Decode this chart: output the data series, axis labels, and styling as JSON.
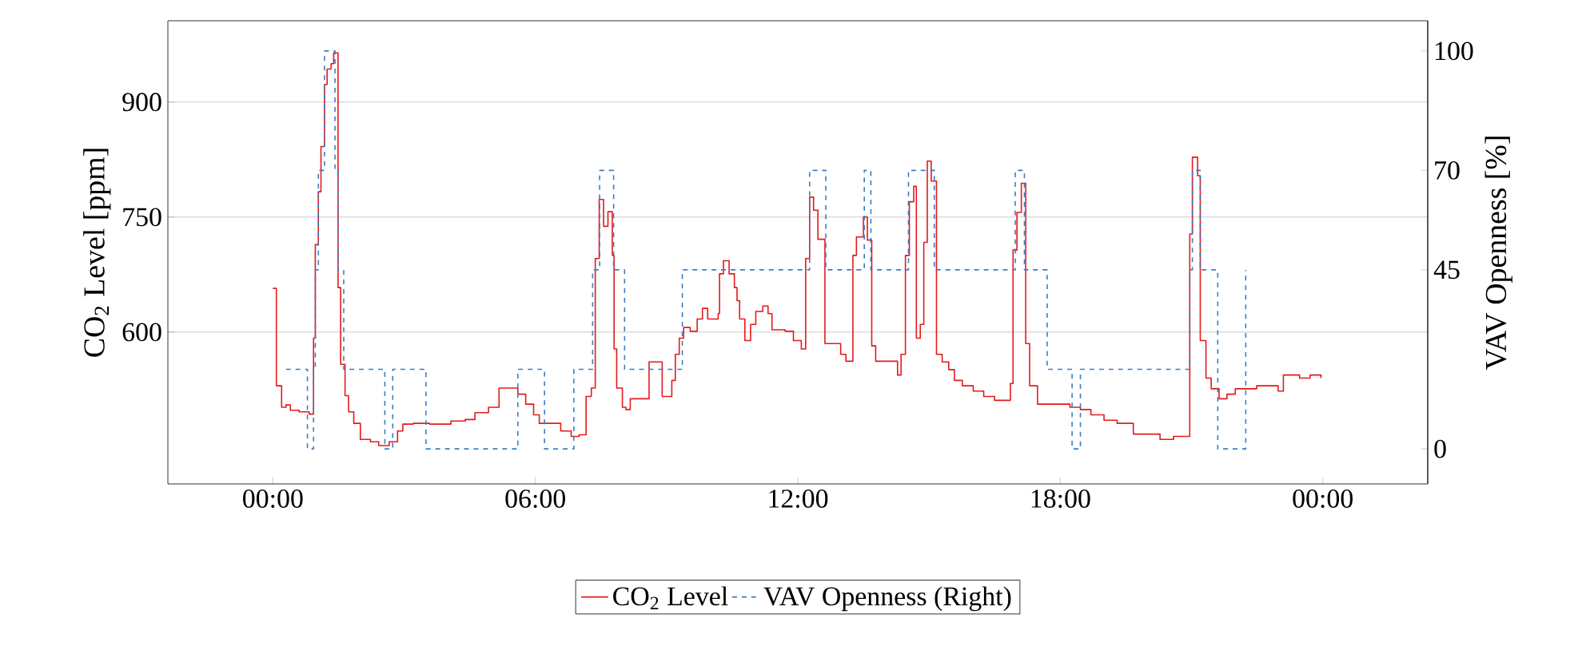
{
  "chart_data": {
    "type": "step",
    "ylabel": "CO$_{2}$ Level [ppm]",
    "y2label": "VAV Openness [%]",
    "xlim": [
      -2.4,
      26.4
    ],
    "ylim": [
      402,
      1006
    ],
    "y2lim": [
      -8.8,
      107.6
    ],
    "xticks": [
      {
        "value": 0,
        "label": "00:00"
      },
      {
        "value": 6,
        "label": "06:00"
      },
      {
        "value": 12,
        "label": "12:00"
      },
      {
        "value": 18,
        "label": "18:00"
      },
      {
        "value": 24,
        "label": "00:00"
      }
    ],
    "yticks": [
      600,
      750,
      900
    ],
    "y2ticks": [
      0,
      45,
      70,
      100
    ],
    "grid": "y",
    "legend": "bottom",
    "series": [
      {
        "name": "CO$_{2}$ Level",
        "color": "#e31a1c",
        "line_style": "solid",
        "x": [
          0,
          0.08,
          0.2,
          0.3,
          0.4,
          0.6,
          0.83,
          0.93,
          0.97,
          1.04,
          1.1,
          1.18,
          1.24,
          1.33,
          1.39,
          1.49,
          1.55,
          1.65,
          1.73,
          1.85,
          2.0,
          2.23,
          2.42,
          2.66,
          2.85,
          2.97,
          3.21,
          3.58,
          4.07,
          4.4,
          4.62,
          4.93,
          5.17,
          5.41,
          5.6,
          5.78,
          5.96,
          6.09,
          6.33,
          6.58,
          6.82,
          7.0,
          7.16,
          7.28,
          7.37,
          7.46,
          7.56,
          7.66,
          7.76,
          7.8,
          7.86,
          7.99,
          8.07,
          8.17,
          8.41,
          8.6,
          8.78,
          8.9,
          9.12,
          9.2,
          9.29,
          9.39,
          9.54,
          9.7,
          9.82,
          9.94,
          10.18,
          10.21,
          10.3,
          10.43,
          10.55,
          10.61,
          10.67,
          10.79,
          10.92,
          11.04,
          11.2,
          11.32,
          11.41,
          11.71,
          11.9,
          12.08,
          12.18,
          12.27,
          12.36,
          12.46,
          12.62,
          12.82,
          12.98,
          13.1,
          13.26,
          13.34,
          13.5,
          13.59,
          13.69,
          13.78,
          14.15,
          14.28,
          14.36,
          14.46,
          14.55,
          14.65,
          14.71,
          14.8,
          14.88,
          14.96,
          15.05,
          15.17,
          15.3,
          15.45,
          15.58,
          15.76,
          16.01,
          16.25,
          16.5,
          16.86,
          16.92,
          17.01,
          17.11,
          17.21,
          17.3,
          17.48,
          17.97,
          18.22,
          18.46,
          18.7,
          19.0,
          19.3,
          19.67,
          20.28,
          20.59,
          20.96,
          21.02,
          21.14,
          21.2,
          21.33,
          21.45,
          21.63,
          21.81,
          22.0,
          22.49,
          22.98,
          23.1,
          23.47,
          23.71,
          23.96
        ],
        "values": [
          657,
          530,
          502,
          505,
          498,
          496,
          493,
          592,
          714,
          783,
          842,
          923,
          943,
          950,
          964,
          658,
          558,
          517,
          496,
          481,
          460,
          457,
          452,
          457,
          471,
          480,
          481,
          480,
          484,
          486,
          495,
          502,
          527,
          527,
          519,
          506,
          492,
          481,
          481,
          471,
          464,
          466,
          516,
          527,
          696,
          773,
          738,
          757,
          700,
          578,
          527,
          502,
          499,
          513,
          513,
          561,
          561,
          516,
          537,
          571,
          592,
          606,
          601,
          617,
          631,
          617,
          624,
          676,
          693,
          676,
          658,
          641,
          617,
          589,
          610,
          627,
          634,
          624,
          603,
          601,
          589,
          578,
          696,
          776,
          759,
          721,
          585,
          585,
          571,
          562,
          700,
          724,
          750,
          720,
          582,
          562,
          562,
          544,
          571,
          700,
          770,
          790,
          592,
          610,
          717,
          823,
          797,
          571,
          561,
          551,
          537,
          530,
          523,
          516,
          511,
          533,
          707,
          756,
          794,
          585,
          530,
          506,
          506,
          502,
          499,
          492,
          485,
          481,
          467,
          460,
          464,
          728,
          828,
          804,
          589,
          540,
          526,
          513,
          519,
          526,
          530,
          523,
          544,
          540,
          544,
          540
        ]
      },
      {
        "name": "VAV Openness (Right)",
        "color": "#3b7dc4",
        "line_style": "dashed",
        "axis": "y2",
        "x": [
          0.3,
          0.79,
          0.93,
          0.97,
          1.04,
          1.18,
          1.42,
          1.49,
          1.62,
          2.56,
          2.74,
          3.5,
          5.6,
          6.21,
          6.88,
          7.31,
          7.47,
          7.79,
          8.04,
          9.36,
          12.27,
          12.64,
          13.52,
          13.67,
          14.53,
          15.12,
          16.97,
          17.18,
          17.7,
          18.27,
          18.46,
          20.96,
          21.02,
          21.2,
          21.6,
          22.24
        ],
        "values": [
          20,
          0,
          20,
          45,
          70,
          100,
          70,
          45,
          20,
          0,
          20,
          0,
          20,
          0,
          20,
          45,
          70,
          45,
          20,
          45,
          70,
          45,
          70,
          45,
          70,
          45,
          70,
          45,
          20,
          0,
          20,
          45,
          70,
          45,
          0,
          45
        ]
      }
    ]
  }
}
